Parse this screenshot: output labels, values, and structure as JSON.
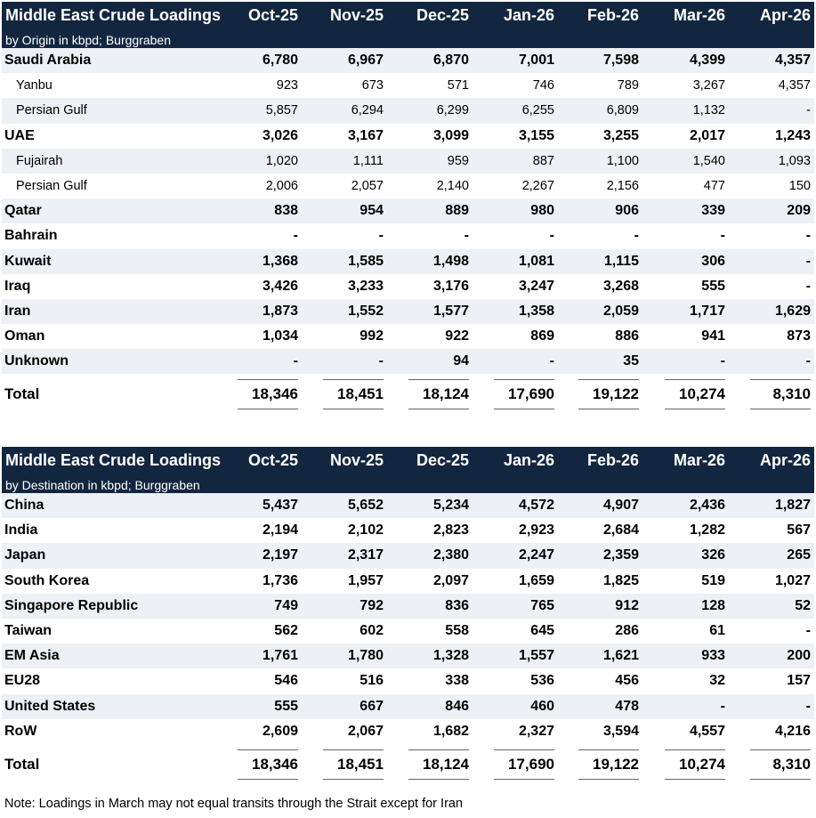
{
  "columns": [
    "Oct-25",
    "Nov-25",
    "Dec-25",
    "Jan-26",
    "Feb-26",
    "Mar-26",
    "Apr-26"
  ],
  "origin_table": {
    "title": "Middle East Crude Loadings",
    "subtitle": "by Origin in kbpd; Burggraben",
    "rows": [
      {
        "label": "Saudi Arabia",
        "style": "bold",
        "values": [
          "6,780",
          "6,967",
          "6,870",
          "7,001",
          "7,598",
          "4,399",
          "4,357"
        ]
      },
      {
        "label": "Yanbu",
        "style": "sub",
        "values": [
          "923",
          "673",
          "571",
          "746",
          "789",
          "3,267",
          "4,357"
        ]
      },
      {
        "label": "Persian Gulf",
        "style": "sub",
        "values": [
          "5,857",
          "6,294",
          "6,299",
          "6,255",
          "6,809",
          "1,132",
          "-"
        ]
      },
      {
        "label": "UAE",
        "style": "bold",
        "values": [
          "3,026",
          "3,167",
          "3,099",
          "3,155",
          "3,255",
          "2,017",
          "1,243"
        ]
      },
      {
        "label": "Fujairah",
        "style": "sub",
        "values": [
          "1,020",
          "1,111",
          "959",
          "887",
          "1,100",
          "1,540",
          "1,093"
        ]
      },
      {
        "label": "Persian Gulf",
        "style": "sub",
        "values": [
          "2,006",
          "2,057",
          "2,140",
          "2,267",
          "2,156",
          "477",
          "150"
        ]
      },
      {
        "label": "Qatar",
        "style": "bold",
        "values": [
          "838",
          "954",
          "889",
          "980",
          "906",
          "339",
          "209"
        ]
      },
      {
        "label": "Bahrain",
        "style": "bold",
        "values": [
          "-",
          "-",
          "-",
          "-",
          "-",
          "-",
          "-"
        ]
      },
      {
        "label": "Kuwait",
        "style": "bold",
        "values": [
          "1,368",
          "1,585",
          "1,498",
          "1,081",
          "1,115",
          "306",
          "-"
        ]
      },
      {
        "label": "Iraq",
        "style": "bold",
        "values": [
          "3,426",
          "3,233",
          "3,176",
          "3,247",
          "3,268",
          "555",
          "-"
        ]
      },
      {
        "label": "Iran",
        "style": "bold",
        "values": [
          "1,873",
          "1,552",
          "1,577",
          "1,358",
          "2,059",
          "1,717",
          "1,629"
        ]
      },
      {
        "label": "Oman",
        "style": "bold",
        "values": [
          "1,034",
          "992",
          "922",
          "869",
          "886",
          "941",
          "873"
        ]
      },
      {
        "label": "Unknown",
        "style": "bold",
        "values": [
          "-",
          "-",
          "94",
          "-",
          "35",
          "-",
          "-"
        ]
      }
    ],
    "total": {
      "label": "Total",
      "values": [
        "18,346",
        "18,451",
        "18,124",
        "17,690",
        "19,122",
        "10,274",
        "8,310"
      ]
    }
  },
  "destination_table": {
    "title": "Middle East Crude Loadings",
    "subtitle": "by Destination in kbpd; Burggraben",
    "rows": [
      {
        "label": "China",
        "style": "bold",
        "values": [
          "5,437",
          "5,652",
          "5,234",
          "4,572",
          "4,907",
          "2,436",
          "1,827"
        ]
      },
      {
        "label": "India",
        "style": "bold",
        "values": [
          "2,194",
          "2,102",
          "2,823",
          "2,923",
          "2,684",
          "1,282",
          "567"
        ]
      },
      {
        "label": "Japan",
        "style": "bold",
        "values": [
          "2,197",
          "2,317",
          "2,380",
          "2,247",
          "2,359",
          "326",
          "265"
        ]
      },
      {
        "label": "South Korea",
        "style": "bold",
        "values": [
          "1,736",
          "1,957",
          "2,097",
          "1,659",
          "1,825",
          "519",
          "1,027"
        ]
      },
      {
        "label": "Singapore Republic",
        "style": "bold",
        "values": [
          "749",
          "792",
          "836",
          "765",
          "912",
          "128",
          "52"
        ]
      },
      {
        "label": "Taiwan",
        "style": "bold",
        "values": [
          "562",
          "602",
          "558",
          "645",
          "286",
          "61",
          "-"
        ]
      },
      {
        "label": "EM Asia",
        "style": "bold",
        "values": [
          "1,761",
          "1,780",
          "1,328",
          "1,557",
          "1,621",
          "933",
          "200"
        ]
      },
      {
        "label": "EU28",
        "style": "bold",
        "values": [
          "546",
          "516",
          "338",
          "536",
          "456",
          "32",
          "157"
        ]
      },
      {
        "label": "United States",
        "style": "bold",
        "values": [
          "555",
          "667",
          "846",
          "460",
          "478",
          "-",
          "-"
        ]
      },
      {
        "label": "RoW",
        "style": "bold",
        "values": [
          "2,609",
          "2,067",
          "1,682",
          "2,327",
          "3,594",
          "4,557",
          "4,216"
        ]
      }
    ],
    "total": {
      "label": "Total",
      "values": [
        "18,346",
        "18,451",
        "18,124",
        "17,690",
        "19,122",
        "10,274",
        "8,310"
      ]
    }
  },
  "note": "Note: Loadings in March may not equal transits through the Strait except for Iran",
  "colors": {
    "header_bg": "#13263f",
    "header_text": "#ffffff",
    "shade_row": "#edf0f4"
  }
}
